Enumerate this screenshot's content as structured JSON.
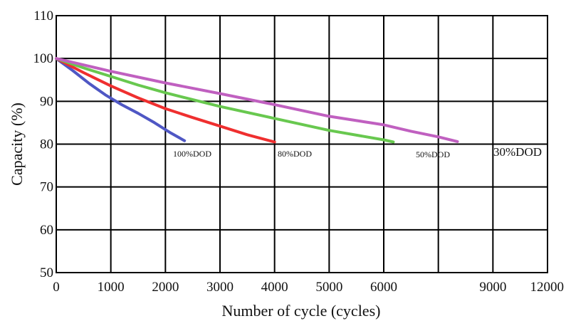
{
  "chart_data": {
    "type": "line",
    "xlabel": "Number of cycle (cycles)",
    "ylabel": "Capacity (%)",
    "x_tick_labels": [
      "0",
      "1000",
      "2000",
      "3000",
      "4000",
      "5000",
      "6000",
      "9000",
      "12000"
    ],
    "y_ticks": [
      50,
      60,
      70,
      80,
      90,
      100,
      110
    ],
    "ylim": [
      50,
      110
    ],
    "grid": true,
    "legend": "none",
    "series": [
      {
        "name": "100%DOD",
        "color": "#4f57c4",
        "points": [
          [
            0,
            100
          ],
          [
            300,
            97.2
          ],
          [
            600,
            94.2
          ],
          [
            900,
            91.5
          ],
          [
            1200,
            89.2
          ],
          [
            1500,
            87.2
          ],
          [
            1800,
            85.0
          ],
          [
            2100,
            82.6
          ],
          [
            2350,
            80.8
          ]
        ]
      },
      {
        "name": "80%DOD",
        "color": "#ef2f2f",
        "points": [
          [
            0,
            100
          ],
          [
            500,
            96.7
          ],
          [
            1000,
            93.6
          ],
          [
            1500,
            90.8
          ],
          [
            2000,
            88.3
          ],
          [
            2500,
            86.2
          ],
          [
            3000,
            84.2
          ],
          [
            3500,
            82.2
          ],
          [
            4000,
            80.5
          ]
        ]
      },
      {
        "name": "50%DOD",
        "color": "#68c84f",
        "points": [
          [
            0,
            100
          ],
          [
            500,
            97.8
          ],
          [
            1000,
            95.8
          ],
          [
            1500,
            93.8
          ],
          [
            2000,
            92.0
          ],
          [
            3000,
            88.8
          ],
          [
            4000,
            86.0
          ],
          [
            5000,
            83.2
          ],
          [
            6000,
            81.0
          ],
          [
            6350,
            80.5
          ]
        ]
      },
      {
        "name": "30%DOD",
        "color": "#c060c0",
        "points": [
          [
            0,
            100
          ],
          [
            1000,
            97.0
          ],
          [
            2000,
            94.3
          ],
          [
            3000,
            91.8
          ],
          [
            4000,
            89.2
          ],
          [
            5000,
            86.5
          ],
          [
            6000,
            84.5
          ],
          [
            7000,
            83.0
          ],
          [
            8000,
            81.7
          ],
          [
            8700,
            80.6
          ]
        ]
      }
    ]
  }
}
